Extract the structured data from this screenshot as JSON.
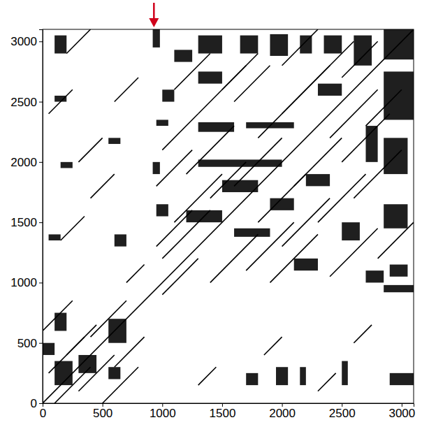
{
  "chart_data": {
    "type": "dotplot",
    "xlim": [
      0,
      3100
    ],
    "ylim": [
      0,
      3100
    ],
    "xticks": [
      0,
      500,
      1000,
      1500,
      2000,
      2500,
      3000
    ],
    "yticks": [
      0,
      500,
      1000,
      1500,
      2000,
      2500,
      3000
    ],
    "color": "#000000",
    "arrow": {
      "x": 930,
      "color": "#d0021b"
    },
    "segments": [
      {
        "x0": 0,
        "y0": 0,
        "x1": 3100,
        "y1": 3100
      },
      {
        "x0": 1000,
        "y0": 1200,
        "x1": 1400,
        "y1": 1600
      },
      {
        "x0": 1100,
        "y0": 1500,
        "x1": 1500,
        "y1": 1900
      },
      {
        "x0": 1200,
        "y0": 1900,
        "x1": 1600,
        "y1": 2300
      },
      {
        "x0": 1300,
        "y0": 2400,
        "x1": 1700,
        "y1": 2800
      },
      {
        "x0": 1000,
        "y0": 2100,
        "x1": 1300,
        "y1": 2400
      },
      {
        "x0": 1500,
        "y0": 2600,
        "x1": 1800,
        "y1": 2900
      },
      {
        "x0": 1400,
        "y0": 1000,
        "x1": 1800,
        "y1": 1400
      },
      {
        "x0": 1700,
        "y0": 1100,
        "x1": 2100,
        "y1": 1500
      },
      {
        "x0": 2000,
        "y0": 1300,
        "x1": 2400,
        "y1": 1700
      },
      {
        "x0": 2300,
        "y0": 1500,
        "x1": 2700,
        "y1": 1900
      },
      {
        "x0": 2500,
        "y0": 2000,
        "x1": 2900,
        "y1": 2400
      },
      {
        "x0": 2200,
        "y0": 2600,
        "x1": 2600,
        "y1": 3000
      },
      {
        "x0": 1800,
        "y0": 2200,
        "x1": 2200,
        "y1": 2600
      },
      {
        "x0": 1600,
        "y0": 1800,
        "x1": 2000,
        "y1": 2200
      },
      {
        "x0": 2000,
        "y0": 2400,
        "x1": 2400,
        "y1": 2800
      },
      {
        "x0": 2400,
        "y0": 2200,
        "x1": 2800,
        "y1": 2600
      },
      {
        "x0": 2600,
        "y0": 1700,
        "x1": 3000,
        "y1": 2100
      },
      {
        "x0": 1900,
        "y0": 1000,
        "x1": 2300,
        "y1": 1400
      },
      {
        "x0": 2400,
        "y0": 1050,
        "x1": 2800,
        "y1": 1450
      },
      {
        "x0": 1100,
        "y0": 2600,
        "x1": 1400,
        "y1": 2900
      },
      {
        "x0": 950,
        "y0": 1800,
        "x1": 1250,
        "y1": 2100
      },
      {
        "x0": 950,
        "y0": 1300,
        "x1": 1250,
        "y1": 1600
      },
      {
        "x0": 2700,
        "y0": 2300,
        "x1": 3000,
        "y1": 2600
      },
      {
        "x0": 2100,
        "y0": 1800,
        "x1": 2500,
        "y1": 2200
      },
      {
        "x0": 1600,
        "y0": 2500,
        "x1": 1900,
        "y1": 2800
      },
      {
        "x0": 1400,
        "y0": 1700,
        "x1": 1700,
        "y1": 2000
      },
      {
        "x0": 1800,
        "y0": 1500,
        "x1": 2200,
        "y1": 1900
      },
      {
        "x0": 2500,
        "y0": 2700,
        "x1": 2800,
        "y1": 3000
      },
      {
        "x0": 2800,
        "y0": 1200,
        "x1": 3100,
        "y1": 1500
      },
      {
        "x0": 1000,
        "y0": 900,
        "x1": 1300,
        "y1": 1200
      },
      {
        "x0": 2000,
        "y0": 2800,
        "x1": 2300,
        "y1": 3100
      },
      {
        "x0": 50,
        "y0": 250,
        "x1": 350,
        "y1": 550
      },
      {
        "x0": 100,
        "y0": 0,
        "x1": 400,
        "y1": 300
      },
      {
        "x0": 300,
        "y0": 100,
        "x1": 600,
        "y1": 400
      },
      {
        "x0": 0,
        "y0": 600,
        "x1": 250,
        "y1": 850
      },
      {
        "x0": 400,
        "y0": 550,
        "x1": 700,
        "y1": 850
      },
      {
        "x0": 200,
        "y0": 400,
        "x1": 450,
        "y1": 650
      },
      {
        "x0": 500,
        "y0": 0,
        "x1": 800,
        "y1": 300
      },
      {
        "x0": 600,
        "y0": 300,
        "x1": 850,
        "y1": 550
      },
      {
        "x0": 2300,
        "y0": 100,
        "x1": 2450,
        "y1": 250
      },
      {
        "x0": 1850,
        "y0": 400,
        "x1": 2000,
        "y1": 550
      },
      {
        "x0": 2600,
        "y0": 500,
        "x1": 2750,
        "y1": 650
      },
      {
        "x0": 1300,
        "y0": 150,
        "x1": 1450,
        "y1": 300
      },
      {
        "x0": 150,
        "y0": 1350,
        "x1": 350,
        "y1": 1550
      },
      {
        "x0": 300,
        "y0": 2000,
        "x1": 500,
        "y1": 2200
      },
      {
        "x0": 50,
        "y0": 2400,
        "x1": 250,
        "y1": 2600
      },
      {
        "x0": 600,
        "y0": 2500,
        "x1": 800,
        "y1": 2700
      },
      {
        "x0": 200,
        "y0": 2900,
        "x1": 400,
        "y1": 3100
      },
      {
        "x0": 400,
        "y0": 1700,
        "x1": 600,
        "y1": 1900
      },
      {
        "x0": 700,
        "y0": 1000,
        "x1": 850,
        "y1": 1150
      }
    ],
    "blocks": [
      {
        "x0": 2850,
        "x1": 3100,
        "y0": 2850,
        "y1": 3100
      },
      {
        "x0": 1300,
        "x1": 1500,
        "y0": 2900,
        "y1": 3050
      },
      {
        "x0": 1650,
        "x1": 1800,
        "y0": 2900,
        "y1": 3050
      },
      {
        "x0": 1900,
        "x1": 2050,
        "y0": 2880,
        "y1": 3060
      },
      {
        "x0": 2150,
        "x1": 2250,
        "y0": 2900,
        "y1": 3050
      },
      {
        "x0": 2350,
        "x1": 2500,
        "y0": 2900,
        "y1": 3050
      },
      {
        "x0": 1100,
        "x1": 1250,
        "y0": 2830,
        "y1": 2930
      },
      {
        "x0": 2850,
        "x1": 3100,
        "y0": 2350,
        "y1": 2750
      },
      {
        "x0": 2850,
        "x1": 3050,
        "y0": 1900,
        "y1": 2200
      },
      {
        "x0": 2850,
        "x1": 3050,
        "y0": 1450,
        "y1": 1650
      },
      {
        "x0": 2900,
        "x1": 3050,
        "y0": 1050,
        "y1": 1150
      },
      {
        "x0": 2850,
        "x1": 3100,
        "y0": 920,
        "y1": 980
      },
      {
        "x0": 1300,
        "x1": 1600,
        "y0": 2250,
        "y1": 2330
      },
      {
        "x0": 1700,
        "x1": 2100,
        "y0": 2280,
        "y1": 2330
      },
      {
        "x0": 1300,
        "x1": 2000,
        "y0": 1960,
        "y1": 2020
      },
      {
        "x0": 1500,
        "x1": 1800,
        "y0": 1750,
        "y1": 1850
      },
      {
        "x0": 1200,
        "x1": 1500,
        "y0": 1500,
        "y1": 1600
      },
      {
        "x0": 1600,
        "x1": 1900,
        "y0": 1380,
        "y1": 1450
      },
      {
        "x0": 1900,
        "x1": 2100,
        "y0": 1600,
        "y1": 1700
      },
      {
        "x0": 2200,
        "x1": 2400,
        "y0": 1800,
        "y1": 1900
      },
      {
        "x0": 2300,
        "x1": 2500,
        "y0": 2550,
        "y1": 2650
      },
      {
        "x0": 1300,
        "x1": 1500,
        "y0": 2650,
        "y1": 2750
      },
      {
        "x0": 950,
        "x1": 1050,
        "y0": 2300,
        "y1": 2350
      },
      {
        "x0": 950,
        "x1": 1050,
        "y0": 1550,
        "y1": 1650
      },
      {
        "x0": 920,
        "x1": 980,
        "y0": 1900,
        "y1": 2000
      },
      {
        "x0": 920,
        "x1": 980,
        "y0": 2950,
        "y1": 3100
      },
      {
        "x0": 1000,
        "x1": 1100,
        "y0": 2500,
        "y1": 2600
      },
      {
        "x0": 2600,
        "x1": 2750,
        "y0": 2800,
        "y1": 3050
      },
      {
        "x0": 2700,
        "x1": 2800,
        "y0": 2000,
        "y1": 2300
      },
      {
        "x0": 2500,
        "x1": 2650,
        "y0": 1350,
        "y1": 1500
      },
      {
        "x0": 2100,
        "x1": 2300,
        "y0": 1100,
        "y1": 1200
      },
      {
        "x0": 2700,
        "x1": 2850,
        "y0": 1000,
        "y1": 1100
      },
      {
        "x0": 100,
        "x1": 250,
        "y0": 150,
        "y1": 350
      },
      {
        "x0": 550,
        "x1": 700,
        "y0": 500,
        "y1": 700
      },
      {
        "x0": 300,
        "x1": 450,
        "y0": 250,
        "y1": 400
      },
      {
        "x0": 100,
        "x1": 200,
        "y0": 600,
        "y1": 750
      },
      {
        "x0": 550,
        "x1": 650,
        "y0": 200,
        "y1": 300
      },
      {
        "x0": 0,
        "x1": 100,
        "y0": 400,
        "y1": 500
      },
      {
        "x0": 600,
        "x1": 700,
        "y0": 1300,
        "y1": 1400
      },
      {
        "x0": 2900,
        "x1": 3100,
        "y0": 150,
        "y1": 250
      },
      {
        "x0": 2500,
        "x1": 2550,
        "y0": 150,
        "y1": 350
      },
      {
        "x0": 1950,
        "x1": 2050,
        "y0": 150,
        "y1": 300
      },
      {
        "x0": 1700,
        "x1": 1800,
        "y0": 150,
        "y1": 250
      },
      {
        "x0": 2150,
        "x1": 2200,
        "y0": 150,
        "y1": 300
      },
      {
        "x0": 100,
        "x1": 200,
        "y0": 2900,
        "y1": 3050
      },
      {
        "x0": 150,
        "x1": 250,
        "y0": 1950,
        "y1": 2000
      },
      {
        "x0": 100,
        "x1": 200,
        "y0": 2500,
        "y1": 2550
      },
      {
        "x0": 550,
        "x1": 650,
        "y0": 2150,
        "y1": 2200
      },
      {
        "x0": 50,
        "x1": 150,
        "y0": 1350,
        "y1": 1400
      }
    ]
  }
}
